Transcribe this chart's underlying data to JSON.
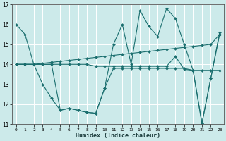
{
  "xlabel": "Humidex (Indice chaleur)",
  "bg_color": "#cceaea",
  "grid_color": "#ffffff",
  "line_color": "#1a6e6e",
  "xlim": [
    -0.5,
    23.5
  ],
  "ylim": [
    11,
    17
  ],
  "yticks": [
    11,
    12,
    13,
    14,
    15,
    16,
    17
  ],
  "xticks": [
    0,
    1,
    2,
    3,
    4,
    5,
    6,
    7,
    8,
    9,
    10,
    11,
    12,
    13,
    14,
    15,
    16,
    17,
    18,
    19,
    20,
    21,
    22,
    23
  ],
  "series": [
    [
      16.0,
      15.5,
      null,
      null,
      null,
      null,
      null,
      null,
      null,
      null,
      null,
      null,
      null,
      null,
      null,
      null,
      null,
      null,
      null,
      null,
      null,
      null,
      null,
      null
    ],
    [
      null,
      null,
      14.0,
      14.0,
      14.0,
      null,
      null,
      null,
      null,
      null,
      null,
      null,
      null,
      null,
      null,
      null,
      null,
      null,
      null,
      null,
      null,
      null,
      null,
      null
    ],
    [
      null,
      null,
      null,
      13.0,
      12.3,
      11.7,
      11.8,
      11.7,
      11.6,
      11.55,
      12.8,
      15.0,
      16.0,
      14.0,
      16.7,
      15.9,
      15.4,
      16.8,
      16.3,
      15.0,
      13.7,
      11.05,
      13.3,
      15.6
    ],
    [
      14.0,
      14.0,
      14.0,
      14.05,
      14.1,
      14.15,
      14.2,
      14.25,
      14.3,
      14.35,
      14.4,
      14.45,
      14.5,
      14.55,
      14.6,
      14.65,
      14.7,
      14.75,
      14.8,
      14.85,
      14.9,
      14.95,
      15.0,
      15.5
    ],
    [
      14.0,
      14.0,
      14.0,
      14.0,
      14.0,
      14.0,
      14.0,
      14.0,
      14.0,
      13.9,
      13.9,
      13.9,
      13.9,
      13.9,
      13.9,
      13.9,
      13.9,
      13.9,
      14.4,
      13.75,
      13.7,
      13.7,
      13.7,
      13.7
    ]
  ],
  "series_full": [
    [
      16.0,
      15.5,
      14.0,
      14.0,
      14.0,
      11.7,
      11.8,
      11.7,
      11.6,
      11.55,
      12.8,
      13.8,
      13.8,
      13.8,
      13.8,
      13.8,
      13.8,
      13.8,
      13.8,
      13.8,
      13.7,
      11.05,
      13.3,
      15.5
    ],
    [
      14.0,
      14.0,
      14.0,
      13.0,
      12.3,
      11.7,
      11.8,
      11.7,
      11.6,
      11.55,
      12.8,
      15.0,
      16.0,
      14.0,
      16.7,
      15.9,
      15.4,
      16.8,
      16.3,
      15.0,
      13.7,
      11.05,
      13.3,
      15.6
    ],
    [
      14.0,
      14.0,
      14.0,
      14.05,
      14.1,
      14.15,
      14.2,
      14.25,
      14.3,
      14.35,
      14.4,
      14.45,
      14.5,
      14.55,
      14.6,
      14.65,
      14.7,
      14.75,
      14.8,
      14.85,
      14.9,
      14.95,
      15.0,
      15.5
    ],
    [
      14.0,
      14.0,
      14.0,
      14.0,
      14.0,
      14.0,
      14.0,
      14.0,
      14.0,
      13.9,
      13.9,
      13.9,
      13.9,
      13.9,
      13.9,
      13.9,
      13.9,
      13.9,
      14.4,
      13.75,
      13.7,
      13.7,
      13.7,
      13.7
    ]
  ]
}
